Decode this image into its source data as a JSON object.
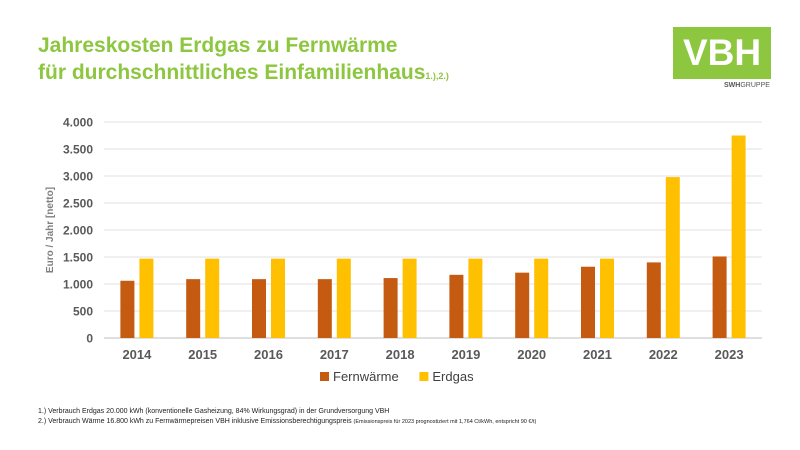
{
  "header": {
    "title_line1": "Jahreskosten Erdgas zu Fernwärme",
    "title_line2": "für durchschnittliches Einfamilienhaus",
    "title_sup": "1.),2.)"
  },
  "logo": {
    "text": "VBH",
    "sub_bold": "SWH",
    "sub_rest": "GRUPPE",
    "color": "#8dc63f"
  },
  "chart_data": {
    "type": "bar",
    "categories": [
      "2014",
      "2015",
      "2016",
      "2017",
      "2018",
      "2019",
      "2020",
      "2021",
      "2022",
      "2023"
    ],
    "series": [
      {
        "name": "Fernwärme",
        "color": "#c55a11",
        "values": [
          1060,
          1090,
          1090,
          1090,
          1110,
          1170,
          1210,
          1320,
          1400,
          1510
        ]
      },
      {
        "name": "Erdgas",
        "color": "#ffc000",
        "values": [
          1470,
          1470,
          1470,
          1470,
          1470,
          1470,
          1470,
          1470,
          2980,
          3750
        ]
      }
    ],
    "ylabel": "Euro / Jahr [netto]",
    "ylim": [
      0,
      4000
    ],
    "yticks": [
      0,
      500,
      1000,
      1500,
      2000,
      2500,
      3000,
      3500,
      4000
    ],
    "ytick_labels": [
      "0",
      "500",
      "1.000",
      "1.500",
      "2.000",
      "2.500",
      "3.000",
      "3.500",
      "4.000"
    ],
    "grid": true,
    "legend_position": "bottom"
  },
  "footnotes": {
    "note1": "1.) Verbrauch Erdgas 20.000 kWh (konventionelle  Gasheizung,  84% Wirkungsgrad) in der Grundversorgung  VBH",
    "note2": "2.) Verbrauch Wärme 16.800 kWh zu Fernwärmepreisen  VBH inklusive  Emissionsberechtigungspreis",
    "note2_small": "(Emissionspreis für 2023 prognostiziert  mit 1,764 Ct/kWh, entspricht 90 €/t)"
  }
}
